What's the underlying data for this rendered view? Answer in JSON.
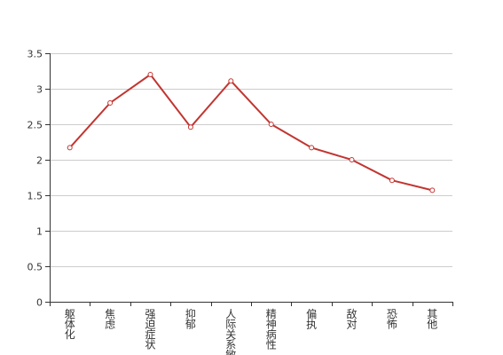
{
  "chart_data": {
    "type": "line",
    "title": "",
    "xlabel": "",
    "ylabel": "",
    "categories": [
      "躯体化",
      "焦虑",
      "强迫症状",
      "抑郁",
      "人际关系敏感",
      "精神病性",
      "偏执",
      "敌对",
      "恐怖",
      "其他"
    ],
    "series": [
      {
        "values": [
          2.17,
          2.8,
          3.2,
          2.46,
          3.11,
          2.5,
          2.17,
          2.0,
          1.71,
          1.57
        ],
        "color": "#c23531"
      }
    ],
    "ylim": [
      0,
      3.5
    ],
    "yticks": [
      "0",
      "0.5",
      "1",
      "1.5",
      "2",
      "2.5",
      "3",
      "3.5"
    ],
    "grid": true,
    "legend": "none"
  }
}
